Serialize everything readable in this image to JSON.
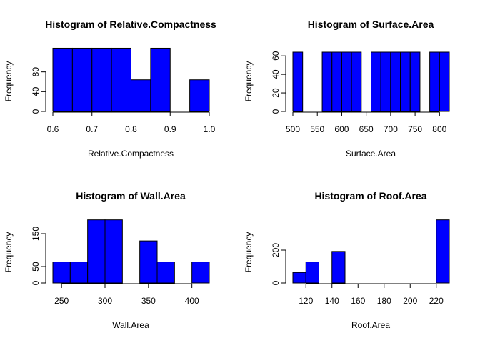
{
  "chart_data": [
    {
      "type": "bar",
      "title": "Histogram of Relative.Compactness",
      "xlabel": "Relative.Compactness",
      "ylabel": "Frequency",
      "bins": [
        [
          0.6,
          0.65
        ],
        [
          0.65,
          0.7
        ],
        [
          0.7,
          0.75
        ],
        [
          0.75,
          0.8
        ],
        [
          0.8,
          0.85
        ],
        [
          0.85,
          0.9
        ],
        [
          0.9,
          0.95
        ],
        [
          0.95,
          1.0
        ]
      ],
      "values": [
        128,
        128,
        128,
        128,
        64,
        128,
        0,
        64
      ],
      "xticks": [
        "0.6",
        "0.7",
        "0.8",
        "0.9",
        "1.0"
      ],
      "yticks": [
        "0",
        "40",
        "80"
      ],
      "xlim": [
        0.6,
        1.0
      ],
      "ylim": [
        0,
        120
      ]
    },
    {
      "type": "bar",
      "title": "Histogram of Surface.Area",
      "xlabel": "Surface.Area",
      "ylabel": "Frequency",
      "bins": [
        [
          500,
          520
        ],
        [
          520,
          540
        ],
        [
          540,
          560
        ],
        [
          560,
          580
        ],
        [
          580,
          600
        ],
        [
          600,
          620
        ],
        [
          620,
          640
        ],
        [
          640,
          660
        ],
        [
          660,
          680
        ],
        [
          680,
          700
        ],
        [
          700,
          720
        ],
        [
          720,
          740
        ],
        [
          740,
          760
        ],
        [
          760,
          780
        ],
        [
          780,
          800
        ],
        [
          800,
          820
        ]
      ],
      "values": [
        64,
        0,
        0,
        64,
        64,
        64,
        64,
        0,
        64,
        64,
        64,
        64,
        64,
        0,
        64,
        64
      ],
      "xticks": [
        "500",
        "550",
        "600",
        "650",
        "700",
        "750",
        "800"
      ],
      "yticks": [
        "0",
        "20",
        "40",
        "60"
      ],
      "xlim": [
        500,
        820
      ],
      "ylim": [
        0,
        64
      ]
    },
    {
      "type": "bar",
      "title": "Histogram of Wall.Area",
      "xlabel": "Wall.Area",
      "ylabel": "Frequency",
      "bins": [
        [
          240,
          260
        ],
        [
          260,
          280
        ],
        [
          280,
          300
        ],
        [
          300,
          320
        ],
        [
          320,
          340
        ],
        [
          340,
          360
        ],
        [
          360,
          380
        ],
        [
          380,
          400
        ],
        [
          400,
          420
        ]
      ],
      "values": [
        64,
        64,
        192,
        192,
        0,
        128,
        64,
        0,
        64
      ],
      "xticks": [
        "250",
        "300",
        "350",
        "400"
      ],
      "yticks": [
        "0",
        "50",
        "150"
      ],
      "xlim": [
        240,
        420
      ],
      "ylim": [
        0,
        150
      ]
    },
    {
      "type": "bar",
      "title": "Histogram of Roof.Area",
      "xlabel": "Roof.Area",
      "ylabel": "Frequency",
      "bins": [
        [
          110,
          120
        ],
        [
          120,
          130
        ],
        [
          130,
          140
        ],
        [
          140,
          150
        ],
        [
          150,
          160
        ],
        [
          160,
          170
        ],
        [
          170,
          180
        ],
        [
          180,
          190
        ],
        [
          190,
          200
        ],
        [
          200,
          210
        ],
        [
          210,
          220
        ],
        [
          220,
          230
        ]
      ],
      "values": [
        64,
        128,
        0,
        192,
        0,
        0,
        0,
        0,
        0,
        0,
        0,
        384
      ],
      "xticks": [
        "120",
        "140",
        "160",
        "180",
        "200",
        "220"
      ],
      "yticks": [
        "0",
        "200"
      ],
      "xlim": [
        110,
        230
      ],
      "ylim": [
        0,
        300
      ]
    }
  ]
}
